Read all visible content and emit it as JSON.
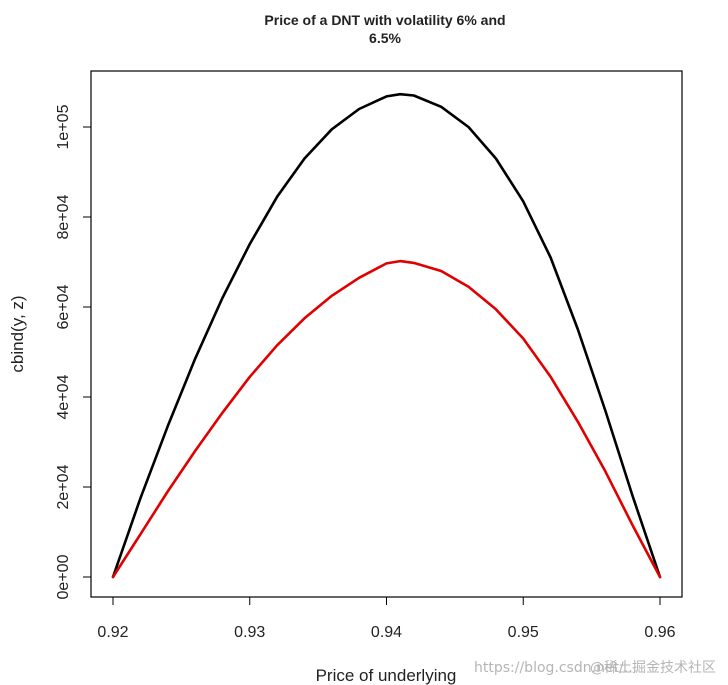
{
  "chart_data": {
    "type": "line",
    "title_line1": "Price of a DNT with volatility 6% and",
    "title_line2": "6.5%",
    "xlabel": "Price of underlying",
    "ylabel": "cbind(y, z)",
    "xlim": [
      0.92,
      0.96
    ],
    "ylim": [
      0,
      105000
    ],
    "x_ticks": [
      0.92,
      0.93,
      0.94,
      0.95,
      0.96
    ],
    "x_tick_labels": [
      "0.92",
      "0.93",
      "0.94",
      "0.95",
      "0.96"
    ],
    "y_ticks": [
      0,
      20000,
      40000,
      60000,
      80000,
      100000
    ],
    "y_tick_labels": [
      "0e+00",
      "2e+04",
      "4e+04",
      "6e+04",
      "8e+04",
      "1e+05"
    ],
    "x": [
      0.92,
      0.922,
      0.924,
      0.926,
      0.928,
      0.93,
      0.932,
      0.934,
      0.936,
      0.938,
      0.94,
      0.941,
      0.942,
      0.944,
      0.946,
      0.948,
      0.95,
      0.952,
      0.954,
      0.956,
      0.958,
      0.96
    ],
    "series": [
      {
        "color": "#000000",
        "values": [
          0,
          17500,
          33500,
          48500,
          62000,
          74000,
          84500,
          93000,
          99500,
          104000,
          106800,
          107300,
          107000,
          104500,
          100000,
          93000,
          83500,
          71000,
          55000,
          37000,
          18000,
          0
        ]
      },
      {
        "color": "#e00000",
        "values": [
          0,
          9500,
          19000,
          28000,
          36500,
          44500,
          51500,
          57500,
          62500,
          66500,
          69700,
          70200,
          69800,
          68000,
          64500,
          59500,
          53000,
          44500,
          34500,
          23500,
          11500,
          0
        ]
      }
    ],
    "grid": false,
    "legend": "none"
  },
  "watermark": {
    "text1": "https://blog.csdn.net/...",
    "text2": "@稀土掘金技术社区"
  }
}
